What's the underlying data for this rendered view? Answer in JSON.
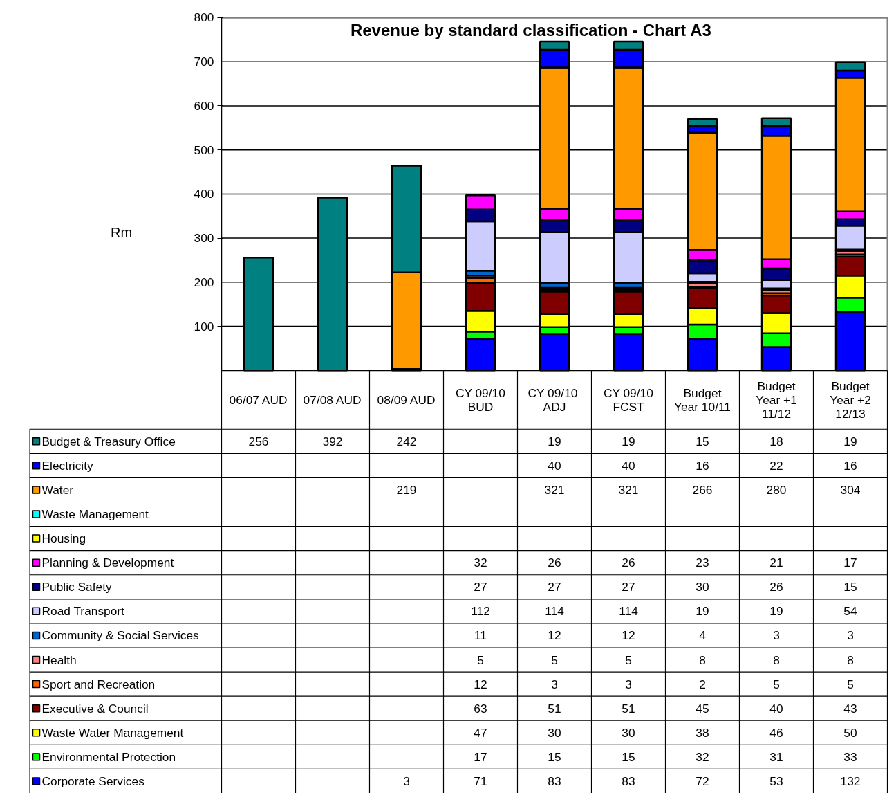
{
  "chart_data": {
    "type": "bar",
    "title": "Revenue by standard classification - Chart A3",
    "ylabel": "Rm",
    "stacked": true,
    "data_labels": true,
    "legend": "bottom",
    "grid": "y",
    "categories": [
      "06/07 AUD",
      "07/08 AUD",
      "08/09 AUD",
      "CY 09/10\nBUD",
      "CY  09/10\nADJ",
      "CY 09/10\nFCST",
      "Budget\nYear 10/11",
      "Budget\nYear +1\n11/12",
      "Budget\nYear +2\n12/13"
    ],
    "ylim": [
      0,
      800
    ],
    "yticks": [
      100,
      200,
      300,
      400,
      500,
      600,
      700,
      800
    ],
    "series": [
      {
        "name": "Corporate Services",
        "color": "#0000ff",
        "values": [
          null,
          null,
          3,
          71,
          83,
          83,
          72,
          53,
          132
        ]
      },
      {
        "name": "Environmental Protection",
        "color": "#00ff00",
        "values": [
          null,
          null,
          null,
          17,
          15,
          15,
          32,
          31,
          33
        ]
      },
      {
        "name": "Waste Water Management",
        "color": "#ffff00",
        "values": [
          null,
          null,
          null,
          47,
          30,
          30,
          38,
          46,
          50
        ]
      },
      {
        "name": "Executive & Council",
        "color": "#800000",
        "values": [
          null,
          null,
          null,
          63,
          51,
          51,
          45,
          40,
          43
        ]
      },
      {
        "name": "Sport and Recreation",
        "color": "#ff6600",
        "values": [
          null,
          null,
          null,
          12,
          3,
          3,
          2,
          5,
          5
        ]
      },
      {
        "name": "Health",
        "color": "#ff8080",
        "values": [
          null,
          null,
          null,
          5,
          5,
          5,
          8,
          8,
          8
        ]
      },
      {
        "name": "Community & Social Services",
        "color": "#0066cc",
        "values": [
          null,
          null,
          null,
          11,
          12,
          12,
          4,
          3,
          3
        ]
      },
      {
        "name": "Road Transport",
        "color": "#ccccff",
        "values": [
          null,
          null,
          null,
          112,
          114,
          114,
          19,
          19,
          54
        ]
      },
      {
        "name": "Public Safety",
        "color": "#000080",
        "values": [
          null,
          null,
          null,
          27,
          27,
          27,
          30,
          26,
          15
        ]
      },
      {
        "name": "Planning & Development",
        "color": "#ff00ff",
        "values": [
          null,
          null,
          null,
          32,
          26,
          26,
          23,
          21,
          17
        ]
      },
      {
        "name": "Housing",
        "color": "#ffff00",
        "values": [
          null,
          null,
          null,
          null,
          null,
          null,
          null,
          null,
          null
        ]
      },
      {
        "name": "Waste Management",
        "color": "#00ffff",
        "values": [
          null,
          null,
          null,
          null,
          null,
          null,
          null,
          null,
          null
        ]
      },
      {
        "name": "Water",
        "color": "#ff9900",
        "values": [
          null,
          null,
          219,
          null,
          321,
          321,
          266,
          280,
          304
        ]
      },
      {
        "name": "Electricity",
        "color": "#0000ff",
        "values": [
          null,
          null,
          null,
          null,
          40,
          40,
          16,
          22,
          16
        ]
      },
      {
        "name": "Budget & Treasury Office",
        "color": "#008080",
        "values": [
          256,
          392,
          242,
          null,
          19,
          19,
          15,
          18,
          19
        ]
      }
    ]
  }
}
